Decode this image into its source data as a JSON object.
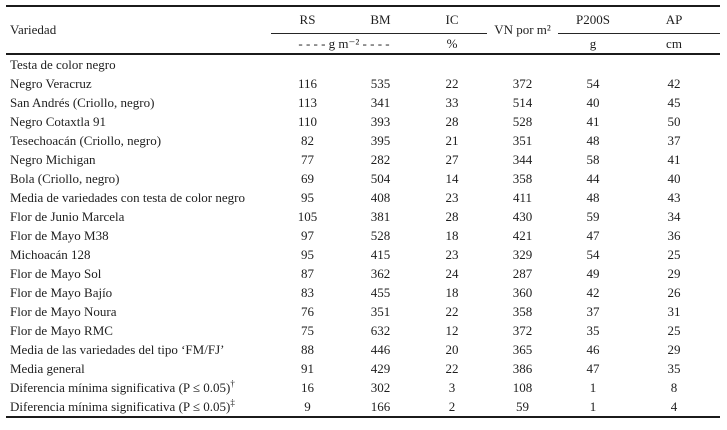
{
  "colors": {
    "ink": "#1e1e1e",
    "rule": "#1b1b1b",
    "background": "#ffffff"
  },
  "table": {
    "header": {
      "variety": "Variedad",
      "col_rs": "RS",
      "col_bm": "BM",
      "col_ic": "IC",
      "col_vn": "VN por m²",
      "col_p200s": "P200S",
      "col_ap": "AP",
      "unit_gm2": "- - - -  g m⁻²  - - - -",
      "unit_pct": "%",
      "unit_g": "g",
      "unit_cm": "cm"
    },
    "rows": [
      {
        "section": true,
        "label": "Testa de color negro",
        "values": [
          "",
          "",
          "",
          "",
          "",
          ""
        ]
      },
      {
        "section": false,
        "label": "Negro Veracruz",
        "values": [
          "116",
          "535",
          "22",
          "372",
          "54",
          "42"
        ]
      },
      {
        "section": false,
        "label": "San Andrés (Criollo, negro)",
        "values": [
          "113",
          "341",
          "33",
          "514",
          "40",
          "45"
        ]
      },
      {
        "section": false,
        "label": "Negro Cotaxtla 91",
        "values": [
          "110",
          "393",
          "28",
          "528",
          "41",
          "50"
        ]
      },
      {
        "section": false,
        "label": "Tesechoacán (Criollo, negro)",
        "values": [
          "82",
          "395",
          "21",
          "351",
          "48",
          "37"
        ]
      },
      {
        "section": false,
        "label": "Negro Michigan",
        "values": [
          "77",
          "282",
          "27",
          "344",
          "58",
          "41"
        ]
      },
      {
        "section": false,
        "label": "Bola (Criollo, negro)",
        "values": [
          "69",
          "504",
          "14",
          "358",
          "44",
          "40"
        ]
      },
      {
        "section": false,
        "label": "Media de variedades con testa de color negro",
        "values": [
          "95",
          "408",
          "23",
          "411",
          "48",
          "43"
        ]
      },
      {
        "section": false,
        "label": "Flor de Junio Marcela",
        "values": [
          "105",
          "381",
          "28",
          "430",
          "59",
          "34"
        ]
      },
      {
        "section": false,
        "label": "Flor de Mayo M38",
        "values": [
          "97",
          "528",
          "18",
          "421",
          "47",
          "36"
        ]
      },
      {
        "section": false,
        "label": "Michoacán 128",
        "values": [
          "95",
          "415",
          "23",
          "329",
          "54",
          "25"
        ]
      },
      {
        "section": false,
        "label": "Flor de Mayo Sol",
        "values": [
          "87",
          "362",
          "24",
          "287",
          "49",
          "29"
        ]
      },
      {
        "section": false,
        "label": "Flor de Mayo Bajío",
        "values": [
          "83",
          "455",
          "18",
          "360",
          "42",
          "26"
        ]
      },
      {
        "section": false,
        "label": "Flor de Mayo Noura",
        "values": [
          "76",
          "351",
          "22",
          "358",
          "37",
          "31"
        ]
      },
      {
        "section": false,
        "label": "Flor de Mayo RMC",
        "values": [
          "75",
          "632",
          "12",
          "372",
          "35",
          "25"
        ]
      },
      {
        "section": false,
        "label": "Media de las variedades del tipo ‘FM/FJ’",
        "values": [
          "88",
          "446",
          "20",
          "365",
          "46",
          "29"
        ]
      },
      {
        "section": false,
        "label": "Media general",
        "values": [
          "91",
          "429",
          "22",
          "386",
          "47",
          "35"
        ]
      },
      {
        "section": false,
        "label": "Diferencia mínima significativa (P ≤ 0.05)",
        "label_sup": "†",
        "values": [
          "16",
          "302",
          "3",
          "108",
          "1",
          "8"
        ]
      },
      {
        "section": false,
        "label": "Diferencia mínima significativa (P ≤ 0.05)",
        "label_sup": "‡",
        "values": [
          "9",
          "166",
          "2",
          "59",
          "1",
          "4"
        ]
      }
    ]
  }
}
